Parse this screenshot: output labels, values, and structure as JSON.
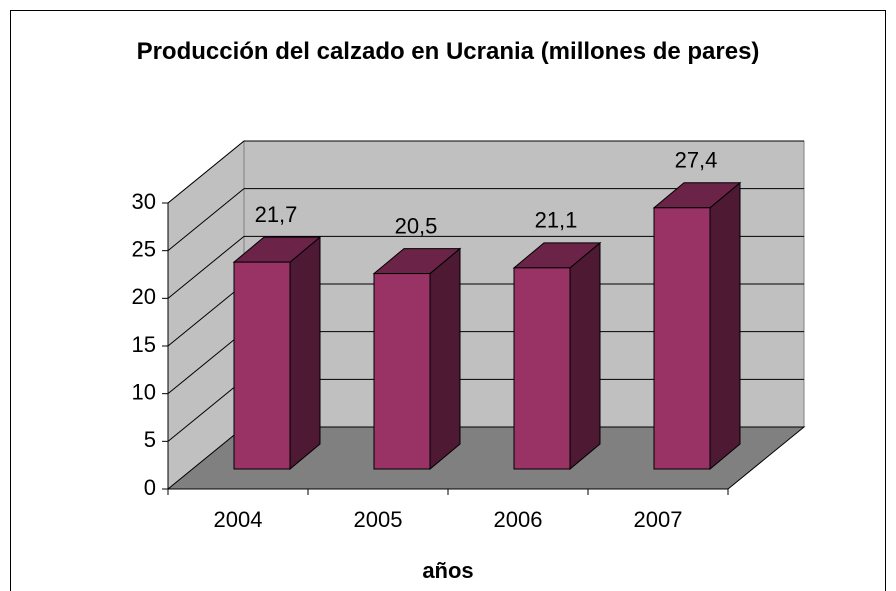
{
  "chart_data": {
    "type": "bar3d",
    "title": "Producción del calzado en Ucrania  (millones de pares)",
    "xlabel": "años",
    "categories": [
      "2004",
      "2005",
      "2006",
      "2007"
    ],
    "values": [
      21.7,
      20.5,
      21.1,
      27.4
    ],
    "value_labels": [
      "21,7",
      "20,5",
      "21,1",
      "27,4"
    ],
    "color": "#993366",
    "ylim": [
      0,
      30
    ],
    "yticks": [
      0,
      5,
      10,
      15,
      20,
      25,
      30
    ],
    "grid": true
  }
}
